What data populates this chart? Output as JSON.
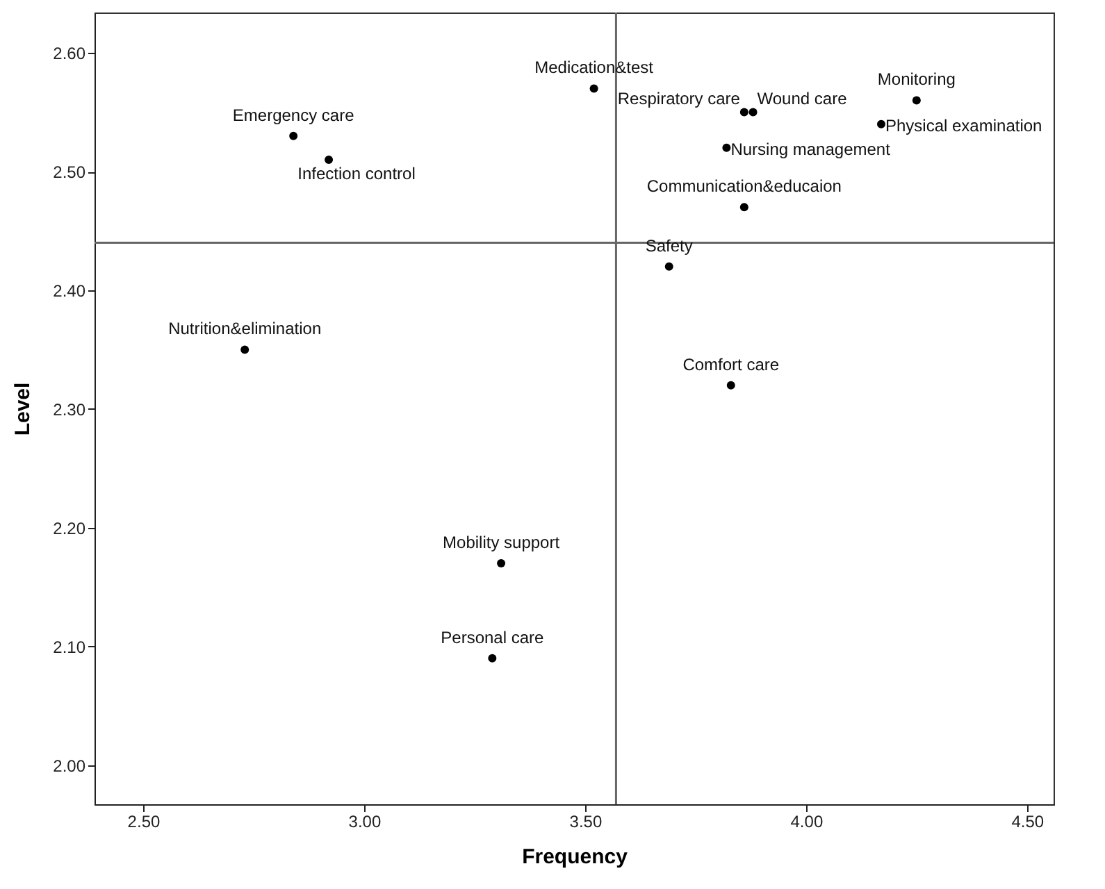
{
  "chart_data": {
    "type": "scatter",
    "xlabel": "Frequency",
    "ylabel": "Level",
    "series": [
      {
        "color": "#000000",
        "x": [
          2.84,
          2.92,
          2.73,
          3.52,
          3.86,
          3.88,
          4.25,
          4.17,
          3.82,
          3.86,
          3.69,
          3.83,
          3.31,
          3.29
        ],
        "values": [
          2.53,
          2.51,
          2.35,
          2.57,
          2.55,
          2.55,
          2.56,
          2.54,
          2.52,
          2.47,
          2.42,
          2.32,
          2.17,
          2.09
        ]
      }
    ],
    "marker": "circle",
    "grid": false,
    "xlim": [
      2.39,
      4.56
    ],
    "ylim": [
      1.967,
      2.634
    ],
    "xticks": [
      {
        "value": 2.5,
        "label": "2.50"
      },
      {
        "value": 3.0,
        "label": "3.00"
      },
      {
        "value": 3.5,
        "label": "3.50"
      },
      {
        "value": 4.0,
        "label": "4.00"
      },
      {
        "value": 4.5,
        "label": "4.50"
      }
    ],
    "yticks": [
      {
        "value": 2.0,
        "label": "2.00"
      },
      {
        "value": 2.1,
        "label": "2.10"
      },
      {
        "value": 2.2,
        "label": "2.20"
      },
      {
        "value": 2.3,
        "label": "2.30"
      },
      {
        "value": 2.4,
        "label": "2.40"
      },
      {
        "value": 2.5,
        "label": "2.50"
      },
      {
        "value": 2.6,
        "label": "2.60"
      }
    ],
    "ref_lines": [
      {
        "axis": "x",
        "value": 3.57,
        "color": "#666666"
      },
      {
        "axis": "y",
        "value": 2.44,
        "color": "#666666"
      }
    ],
    "annotations": [
      {
        "text": "Emergency care",
        "x": 2.84,
        "y": 2.53
      },
      {
        "text": "Infection control",
        "x": 2.92,
        "y": 2.51
      },
      {
        "text": "Nutrition&elimination",
        "x": 2.73,
        "y": 2.35
      },
      {
        "text": "Medication&test",
        "x": 3.52,
        "y": 2.57
      },
      {
        "text": "Respiratory care",
        "x": 3.86,
        "y": 2.55
      },
      {
        "text": "Wound care",
        "x": 3.88,
        "y": 2.55
      },
      {
        "text": "Monitoring",
        "x": 4.25,
        "y": 2.56
      },
      {
        "text": "Physical examination",
        "x": 4.17,
        "y": 2.54
      },
      {
        "text": "Nursing management",
        "x": 3.82,
        "y": 2.52
      },
      {
        "text": "Communication&educaion",
        "x": 3.86,
        "y": 2.47
      },
      {
        "text": "Safety",
        "x": 3.69,
        "y": 2.42
      },
      {
        "text": "Comfort care",
        "x": 3.83,
        "y": 2.32
      },
      {
        "text": "Mobility support",
        "x": 3.31,
        "y": 2.17
      },
      {
        "text": "Personal care",
        "x": 3.29,
        "y": 2.09
      }
    ]
  }
}
